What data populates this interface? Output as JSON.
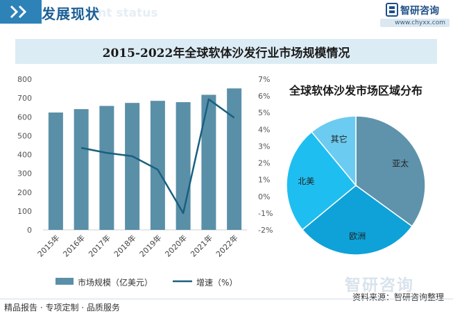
{
  "header": {
    "title": "发展现状",
    "ghost_text": "ment status",
    "brand_name": "智研咨询",
    "brand_url": "www.chyxx.com"
  },
  "chart_title": "2015-2022年全球软体沙发行业市场规模情况",
  "chart_data": [
    {
      "type": "bar",
      "title": "2015-2022年全球软体沙发行业市场规模情况",
      "categories": [
        "2015年",
        "2016年",
        "2017年",
        "2018年",
        "2019年",
        "2020年",
        "2021年",
        "2022年"
      ],
      "ylim": [
        0,
        800
      ],
      "yticks": [
        0,
        100,
        200,
        300,
        400,
        500,
        600,
        700,
        800
      ],
      "y2lim": [
        -2,
        7
      ],
      "y2ticks": [
        "-2%",
        "-1%",
        "0%",
        "1%",
        "2%",
        "3%",
        "4%",
        "5%",
        "6%",
        "7%"
      ],
      "series": [
        {
          "name": "市场规模（亿美元）",
          "type": "bar",
          "axis": "left",
          "color": "#5a8fa8",
          "values": [
            623,
            641,
            658,
            674,
            685,
            678,
            717,
            751
          ]
        },
        {
          "name": "增速（%）",
          "type": "line",
          "axis": "right",
          "color": "#1a5f7f",
          "values": [
            null,
            2.9,
            2.6,
            2.4,
            1.6,
            -1.0,
            5.8,
            4.7
          ]
        }
      ],
      "legend": "bottom",
      "grid": false
    },
    {
      "type": "pie",
      "title": "全球软体沙发市场区域分布",
      "slices": [
        {
          "label": "亚太",
          "value": 35,
          "color": "#5e93ab"
        },
        {
          "label": "欧洲",
          "value": 29,
          "color": "#0ea2d8"
        },
        {
          "label": "北美",
          "value": 25,
          "color": "#1fbef0"
        },
        {
          "label": "其它",
          "value": 11,
          "color": "#6ccbf0"
        }
      ]
    }
  ],
  "legend": {
    "bar_label": "市场规模（亿美元）",
    "line_label": "增速（%）"
  },
  "footer": {
    "tagline": "精品报告 · 专项定制 · 品质服务",
    "source": "资料来源：智研咨询整理",
    "brand": "智研咨询"
  }
}
